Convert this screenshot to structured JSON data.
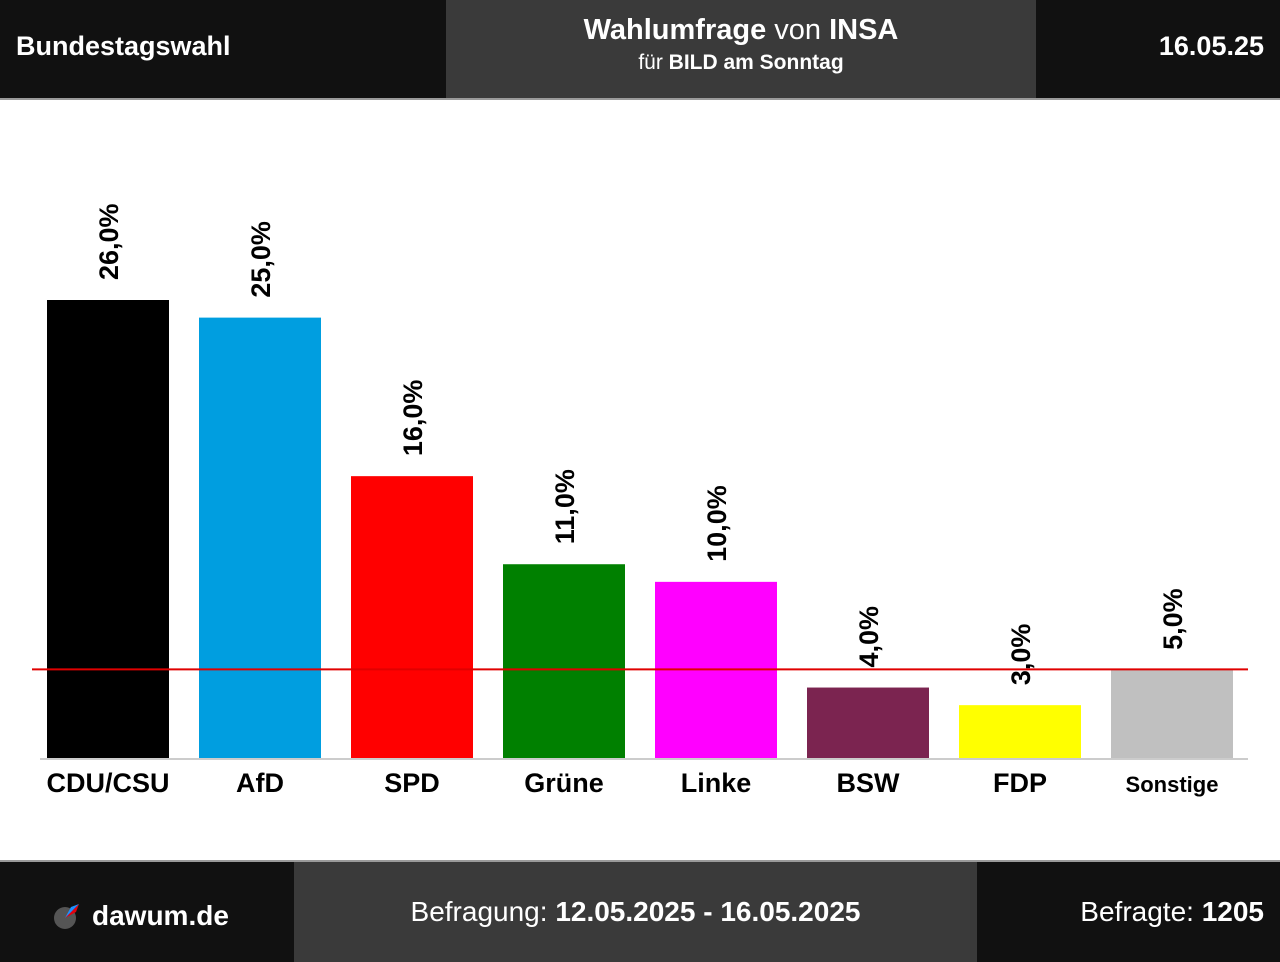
{
  "header": {
    "left": "Bundestagswahl",
    "title_part1": "Wahlumfrage",
    "title_part2": " von ",
    "title_part3": "INSA",
    "subtitle_part1": "für ",
    "subtitle_part2": "BILD am Sonntag",
    "date": "16.05.25"
  },
  "footer": {
    "logo_text": "dawum.de",
    "survey_label": "Befragung: ",
    "survey_period": "12.05.2025 - 16.05.2025",
    "respondents_label": "Befragte: ",
    "respondents_value": "1205"
  },
  "chart_data": {
    "type": "bar",
    "categories": [
      "CDU/CSU",
      "AfD",
      "SPD",
      "Grüne",
      "Linke",
      "BSW",
      "FDP",
      "Sonstige"
    ],
    "values": [
      26.0,
      25.0,
      16.0,
      11.0,
      10.0,
      4.0,
      3.0,
      5.0
    ],
    "value_labels": [
      "26,0%",
      "25,0%",
      "16,0%",
      "11,0%",
      "10,0%",
      "4,0%",
      "3,0%",
      "5,0%"
    ],
    "colors": [
      "#000000",
      "#009ee0",
      "#ff0000",
      "#008000",
      "#ff00ff",
      "#7b2450",
      "#ffff00",
      "#c0c0c0"
    ],
    "threshold": 5.0,
    "threshold_color": "#e00000",
    "ylim": [
      0,
      26
    ],
    "grid": false,
    "legend": "none"
  }
}
